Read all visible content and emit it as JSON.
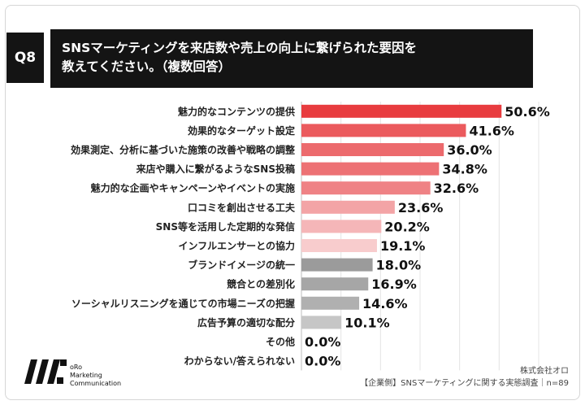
{
  "header": {
    "question_no": "Q8",
    "title_line1": "SNSマーケティングを来店数や売上の向上に繋げられた要因を",
    "title_line2": "教えてください。（複数回答）"
  },
  "chart_data": {
    "type": "bar",
    "orientation": "horizontal",
    "categories": [
      "魅力的なコンテンツの提供",
      "効果的なターゲット設定",
      "効果測定、分析に基づいた施策の改善や戦略の調整",
      "来店や購入に繋がるようなSNS投稿",
      "魅力的な企画やキャンペーンやイベントの実施",
      "口コミを創出させる工夫",
      "SNS等を活用した定期的な発信",
      "インフルエンサーとの協力",
      "ブランドイメージの統一",
      "競合との差別化",
      "ソーシャルリスニングを通じての市場ニーズの把握",
      "広告予算の適切な配分",
      "その他",
      "わからない/答えられない"
    ],
    "values": [
      50.6,
      41.6,
      36.0,
      34.8,
      32.6,
      23.6,
      20.2,
      19.1,
      18.0,
      16.9,
      14.6,
      10.1,
      0.0,
      0.0
    ],
    "value_labels": [
      "50.6%",
      "41.6%",
      "36.0%",
      "34.8%",
      "32.6%",
      "23.6%",
      "20.2%",
      "19.1%",
      "18.0%",
      "16.9%",
      "14.6%",
      "10.1%",
      "0.0%",
      "0.0%"
    ],
    "colors": [
      "#e83c3f",
      "#eb5a5d",
      "#ec6a6d",
      "#ed7174",
      "#ef8285",
      "#f3a4a6",
      "#f5b6b8",
      "#f8cccd",
      "#9b9b9b",
      "#a6a6a6",
      "#b0b0b0",
      "#c6c6c6",
      "#d0d0d0",
      "#d0d0d0"
    ],
    "xlim": [
      0,
      60
    ],
    "grid": true,
    "unit": "%"
  },
  "footer": {
    "logo_line1": "oRo",
    "logo_line2": "Marketing",
    "logo_line3": "Communication",
    "company": "株式会社オロ",
    "source": "【企業側】SNSマーケティングに関する実態調査｜n=89"
  }
}
